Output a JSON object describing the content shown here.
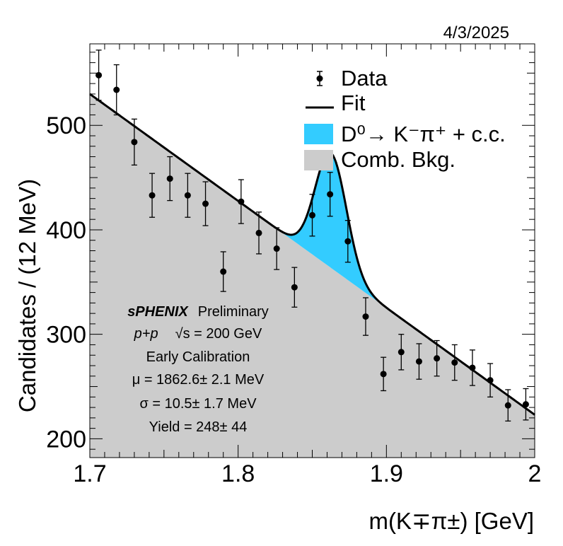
{
  "chart_data": {
    "type": "scatter",
    "date": "4/3/2025",
    "xlabel": "m(K∓π±) [GeV]",
    "ylabel": "Candidates / (12 MeV)",
    "xlim": [
      1.7,
      2.0
    ],
    "ylim": [
      182,
      578
    ],
    "x_ticks": [
      1.7,
      1.8,
      1.9,
      2.0
    ],
    "x_tick_labels": [
      "1.7",
      "1.8",
      "1.9",
      "2"
    ],
    "y_ticks": [
      200,
      300,
      400,
      500
    ],
    "y_tick_labels": [
      "200",
      "300",
      "400",
      "500"
    ],
    "legend": {
      "placement": "top-right",
      "entries": [
        {
          "label": "Data",
          "style": "marker-errorbar"
        },
        {
          "label": "Fit",
          "style": "line"
        },
        {
          "label": "D⁰→ K⁻π⁺ + c.c.",
          "style": "fill",
          "color": "#33ccff"
        },
        {
          "label": "Comb. Bkg.",
          "style": "fill",
          "color": "#cccccc"
        }
      ]
    },
    "annotations": {
      "experiment": "sPHENIX",
      "status": "Preliminary",
      "collision": "p+p",
      "energy": "√s = 200 GeV",
      "calibration": "Early Calibration",
      "mu": "μ = 1862.6± 2.1 MeV",
      "sigma": "σ = 10.5± 1.7 MeV",
      "yield": "Yield = 248± 44"
    },
    "colors": {
      "signal": "#33ccff",
      "background": "#cccccc",
      "fit": "#000000",
      "data": "#000000"
    },
    "data": {
      "x": [
        1.706,
        1.718,
        1.73,
        1.742,
        1.754,
        1.766,
        1.778,
        1.79,
        1.802,
        1.814,
        1.826,
        1.838,
        1.85,
        1.862,
        1.874,
        1.886,
        1.898,
        1.91,
        1.922,
        1.934,
        1.946,
        1.958,
        1.97,
        1.982,
        1.994
      ],
      "y": [
        548,
        534,
        484,
        433,
        449,
        433,
        425,
        360,
        427,
        397,
        382,
        345,
        414,
        434,
        389,
        317,
        262,
        283,
        274,
        277,
        273,
        268,
        256,
        232,
        233
      ],
      "err": [
        24,
        24,
        22,
        21,
        21,
        21,
        21,
        19,
        21,
        20,
        20,
        19,
        20,
        21,
        20,
        18,
        16,
        17,
        17,
        17,
        17,
        17,
        16,
        15,
        15
      ]
    },
    "fit": {
      "background_linear": {
        "x": [
          1.7,
          2.0
        ],
        "y": [
          530,
          223
        ]
      },
      "signal": {
        "mean_gev": 1.8626,
        "sigma_gev": 0.0105,
        "peak_height": 110
      }
    }
  }
}
